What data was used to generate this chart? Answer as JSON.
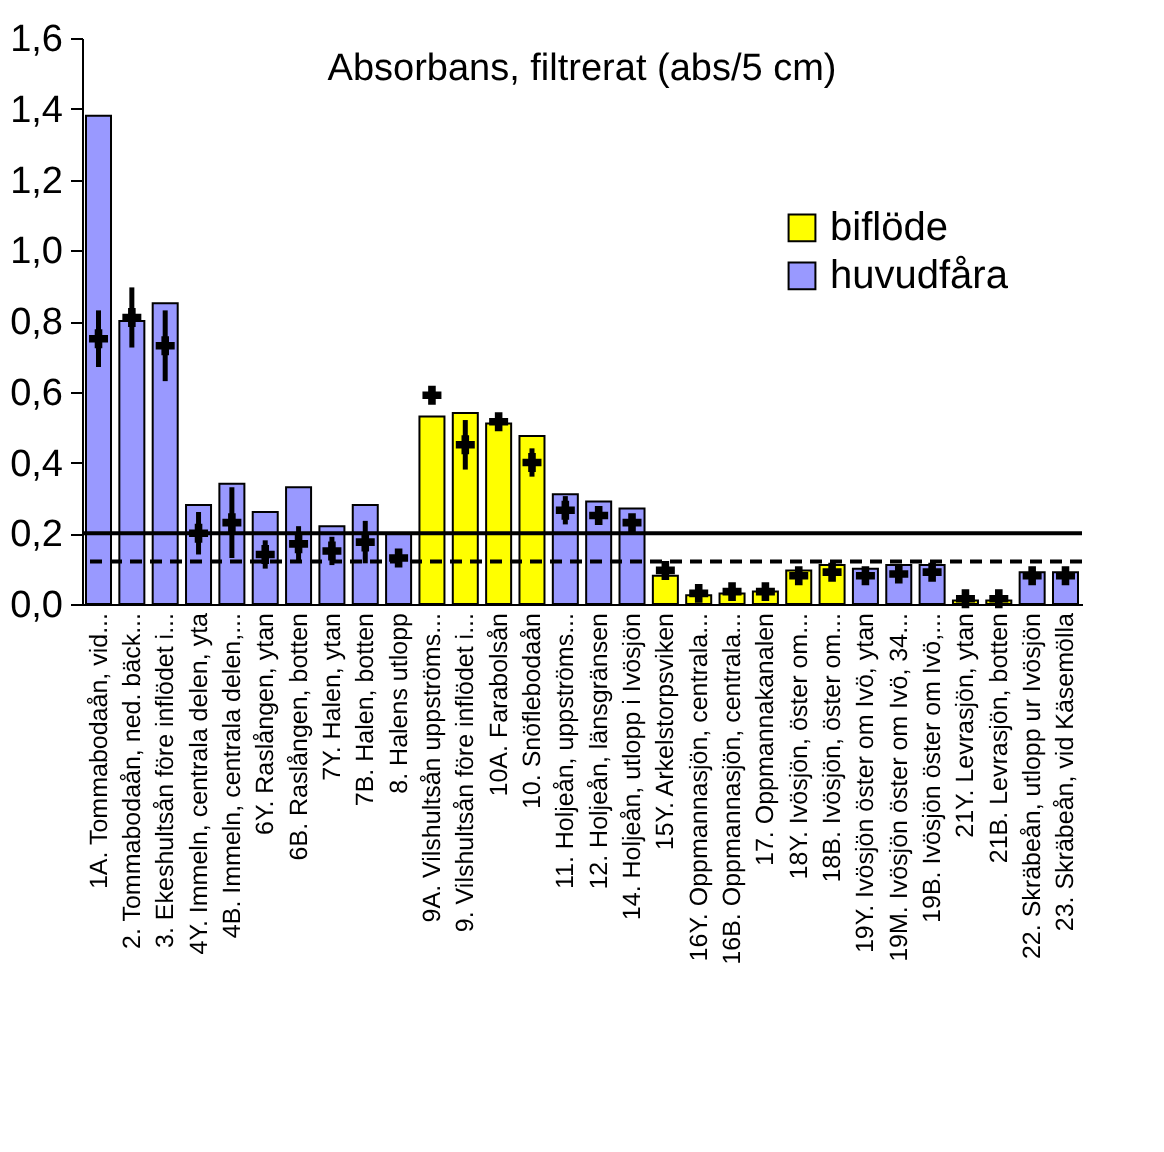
{
  "chart_data": {
    "type": "bar",
    "title": "Absorbans, filtrerat (abs/5 cm)",
    "categories": [
      "1A. Tommabodaån, vid...",
      "2. Tommabodaån, ned. bäck...",
      "3. Ekeshultsån före inflödet i...",
      "4Y. Immeln, centrala delen, yta",
      "4B. Immeln, centrala delen,...",
      "6Y. Raslången, ytan",
      "6B. Raslången, botten",
      "7Y. Halen, ytan",
      "7B. Halen, botten",
      "8. Halens utlopp",
      "9A. Vilshultsån uppströms...",
      "9. Vilshultsån före inflödet i...",
      "10A. Farabolsån",
      "10. Snöflebodaån",
      "11. Holjeån, uppströms...",
      "12. Holjeån, länsgränsen",
      "14. Holjeån, utlopp i Ivösjön",
      "15Y. Arkelstorpsviken",
      "16Y. Oppmannasjön, centrala...",
      "16B. Oppmannasjön, centrala...",
      "17. Oppmannakanalen",
      "18Y. Ivösjön, öster om...",
      "18B. Ivösjön, öster om...",
      "19Y. Ivösjön öster om Ivö, ytan",
      "19M. Ivösjön öster om Ivö, 34...",
      "19B. Ivösjön öster om Ivö,...",
      "21Y. Levrasjön, ytan",
      "21B. Levrasjön, botten",
      "22. Skräbeån, utlopp ur Ivösjön",
      "23. Skräbeån, vid Käsemölla"
    ],
    "series": [
      {
        "name": "biflöde",
        "color": "#ffff00",
        "values": [
          null,
          null,
          null,
          null,
          null,
          null,
          null,
          null,
          null,
          null,
          0.53,
          0.54,
          0.51,
          0.475,
          null,
          null,
          null,
          0.08,
          0.025,
          0.03,
          0.035,
          0.095,
          0.11,
          null,
          null,
          null,
          0.01,
          0.01,
          null,
          null
        ]
      },
      {
        "name": "huvudfåra",
        "color": "#9999ff",
        "values": [
          1.38,
          0.8,
          0.85,
          0.28,
          0.34,
          0.26,
          0.33,
          0.22,
          0.28,
          0.2,
          null,
          null,
          null,
          null,
          0.31,
          0.29,
          0.27,
          null,
          null,
          null,
          null,
          null,
          null,
          0.1,
          0.11,
          0.11,
          null,
          null,
          0.09,
          0.09
        ]
      },
      {
        "type": "scatter",
        "color": "#000000",
        "marker": "cross",
        "values": [
          0.75,
          0.81,
          0.73,
          0.2,
          0.23,
          0.14,
          0.17,
          0.15,
          0.175,
          0.13,
          0.59,
          0.45,
          0.515,
          0.4,
          0.265,
          0.25,
          0.23,
          0.095,
          0.03,
          0.035,
          0.035,
          0.08,
          0.09,
          0.08,
          0.085,
          0.09,
          0.015,
          0.015,
          0.08,
          0.08
        ],
        "errors": [
          0.08,
          0.085,
          0.1,
          0.06,
          0.1,
          0.04,
          0.05,
          0.04,
          0.06,
          0.02,
          null,
          0.07,
          null,
          0.04,
          0.04,
          0.02,
          0.02,
          0.02,
          null,
          null,
          null,
          0.02,
          0.02,
          0.015,
          0.02,
          0.02,
          null,
          null,
          0.02,
          0.02
        ]
      }
    ],
    "ylim": [
      0,
      1.6
    ],
    "yticks": [
      {
        "value": 0,
        "label": "0,0"
      },
      {
        "value": 0.2,
        "label": "0,2"
      },
      {
        "value": 0.4,
        "label": "0,4"
      },
      {
        "value": 0.6,
        "label": "0,6"
      },
      {
        "value": 0.8,
        "label": "0,8"
      },
      {
        "value": 1.0,
        "label": "1,0"
      },
      {
        "value": 1.2,
        "label": "1,2"
      },
      {
        "value": 1.4,
        "label": "1,4"
      },
      {
        "value": 1.6,
        "label": "1,6"
      }
    ],
    "ref_lines": [
      {
        "axis": "y",
        "value": 0.2,
        "color": "#000000",
        "line_style": "solid"
      },
      {
        "axis": "y",
        "value": 0.12,
        "color": "#000000",
        "line_style": "dashed"
      }
    ],
    "legend": "top right",
    "grid": false
  }
}
